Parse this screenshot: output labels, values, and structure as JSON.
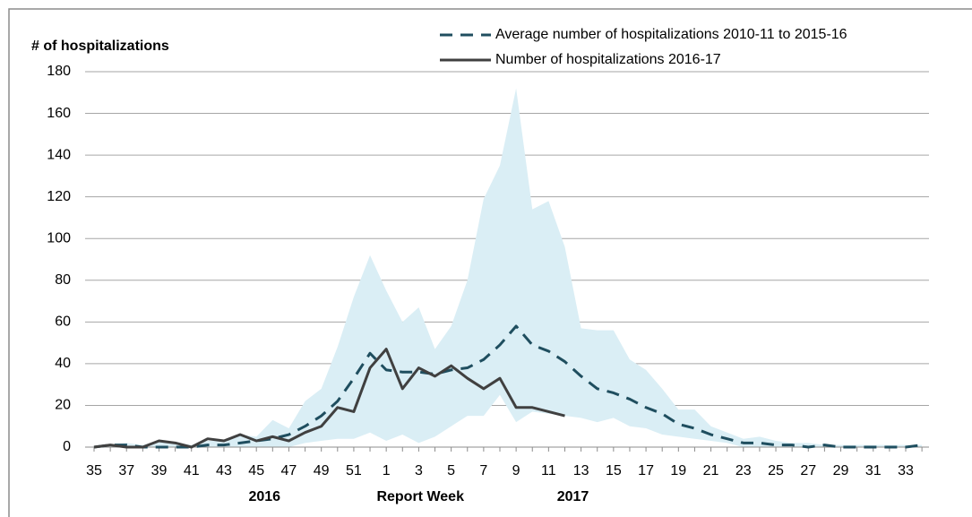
{
  "chart_data": {
    "type": "line",
    "y_axis_label": "# of hospitalizations",
    "x_axis_label": "Report Week",
    "x_group_labels": [
      "2016",
      "2017"
    ],
    "categories": [
      "35",
      null,
      "37",
      null,
      "39",
      null,
      "41",
      null,
      "43",
      null,
      "45",
      null,
      "47",
      null,
      "49",
      null,
      "51",
      null,
      "1",
      null,
      "3",
      null,
      "5",
      null,
      "7",
      null,
      "9",
      null,
      "11",
      null,
      "13",
      null,
      "15",
      null,
      "17",
      null,
      "19",
      null,
      "21",
      null,
      "23",
      null,
      "25",
      null,
      "27",
      null,
      "29",
      null,
      "31",
      null,
      "33",
      null
    ],
    "series": [
      {
        "name": "Average number of hospitalizations 2010-11 to 2015-16",
        "color": "#1f4e5f",
        "dashed": true,
        "values": [
          0,
          1,
          1,
          0,
          0,
          0,
          0,
          1,
          1,
          2,
          3,
          4,
          6,
          10,
          15,
          22,
          33,
          45,
          37,
          36,
          36,
          35,
          37,
          38,
          42,
          49,
          58,
          49,
          46,
          41,
          34,
          28,
          26,
          23,
          19,
          16,
          11,
          9,
          6,
          4,
          2,
          2,
          1,
          1,
          0,
          1,
          0,
          0,
          0,
          0,
          0,
          1
        ]
      },
      {
        "name": "Number of hospitalizations 2016-17",
        "color": "#404040",
        "dashed": false,
        "values": [
          0,
          1,
          0,
          0,
          3,
          2,
          0,
          4,
          3,
          6,
          3,
          5,
          3,
          7,
          10,
          19,
          17,
          38,
          47,
          28,
          38,
          34,
          39,
          33,
          28,
          33,
          19,
          19,
          17,
          15,
          null,
          null,
          null,
          null,
          null,
          null,
          null,
          null,
          null,
          null,
          null,
          null,
          null,
          null,
          null,
          null,
          null,
          null,
          null,
          null,
          null,
          null
        ]
      }
    ],
    "band": {
      "color": "#daeef5",
      "upper": [
        0,
        1,
        2,
        1,
        3,
        2,
        1,
        3,
        3,
        6,
        5,
        13,
        9,
        22,
        28,
        48,
        72,
        92,
        75,
        60,
        67,
        47,
        58,
        80,
        119,
        135,
        172,
        114,
        118,
        96,
        57,
        56,
        56,
        42,
        37,
        28,
        18,
        18,
        10,
        7,
        4,
        5,
        3,
        2,
        2,
        1,
        1,
        1,
        1,
        1,
        1,
        1
      ],
      "lower": [
        0,
        0,
        0,
        0,
        0,
        0,
        0,
        0,
        0,
        0,
        0,
        0,
        0,
        2,
        3,
        4,
        4,
        7,
        3,
        6,
        2,
        5,
        10,
        15,
        15,
        25,
        12,
        17,
        16,
        15,
        14,
        12,
        14,
        10,
        9,
        6,
        5,
        4,
        3,
        2,
        0,
        0,
        0,
        0,
        0,
        0,
        0,
        0,
        0,
        0,
        0,
        0
      ]
    },
    "ylim": [
      0,
      180
    ],
    "yticks": [
      0,
      20,
      40,
      60,
      80,
      100,
      120,
      140,
      160,
      180
    ],
    "grid": true
  }
}
